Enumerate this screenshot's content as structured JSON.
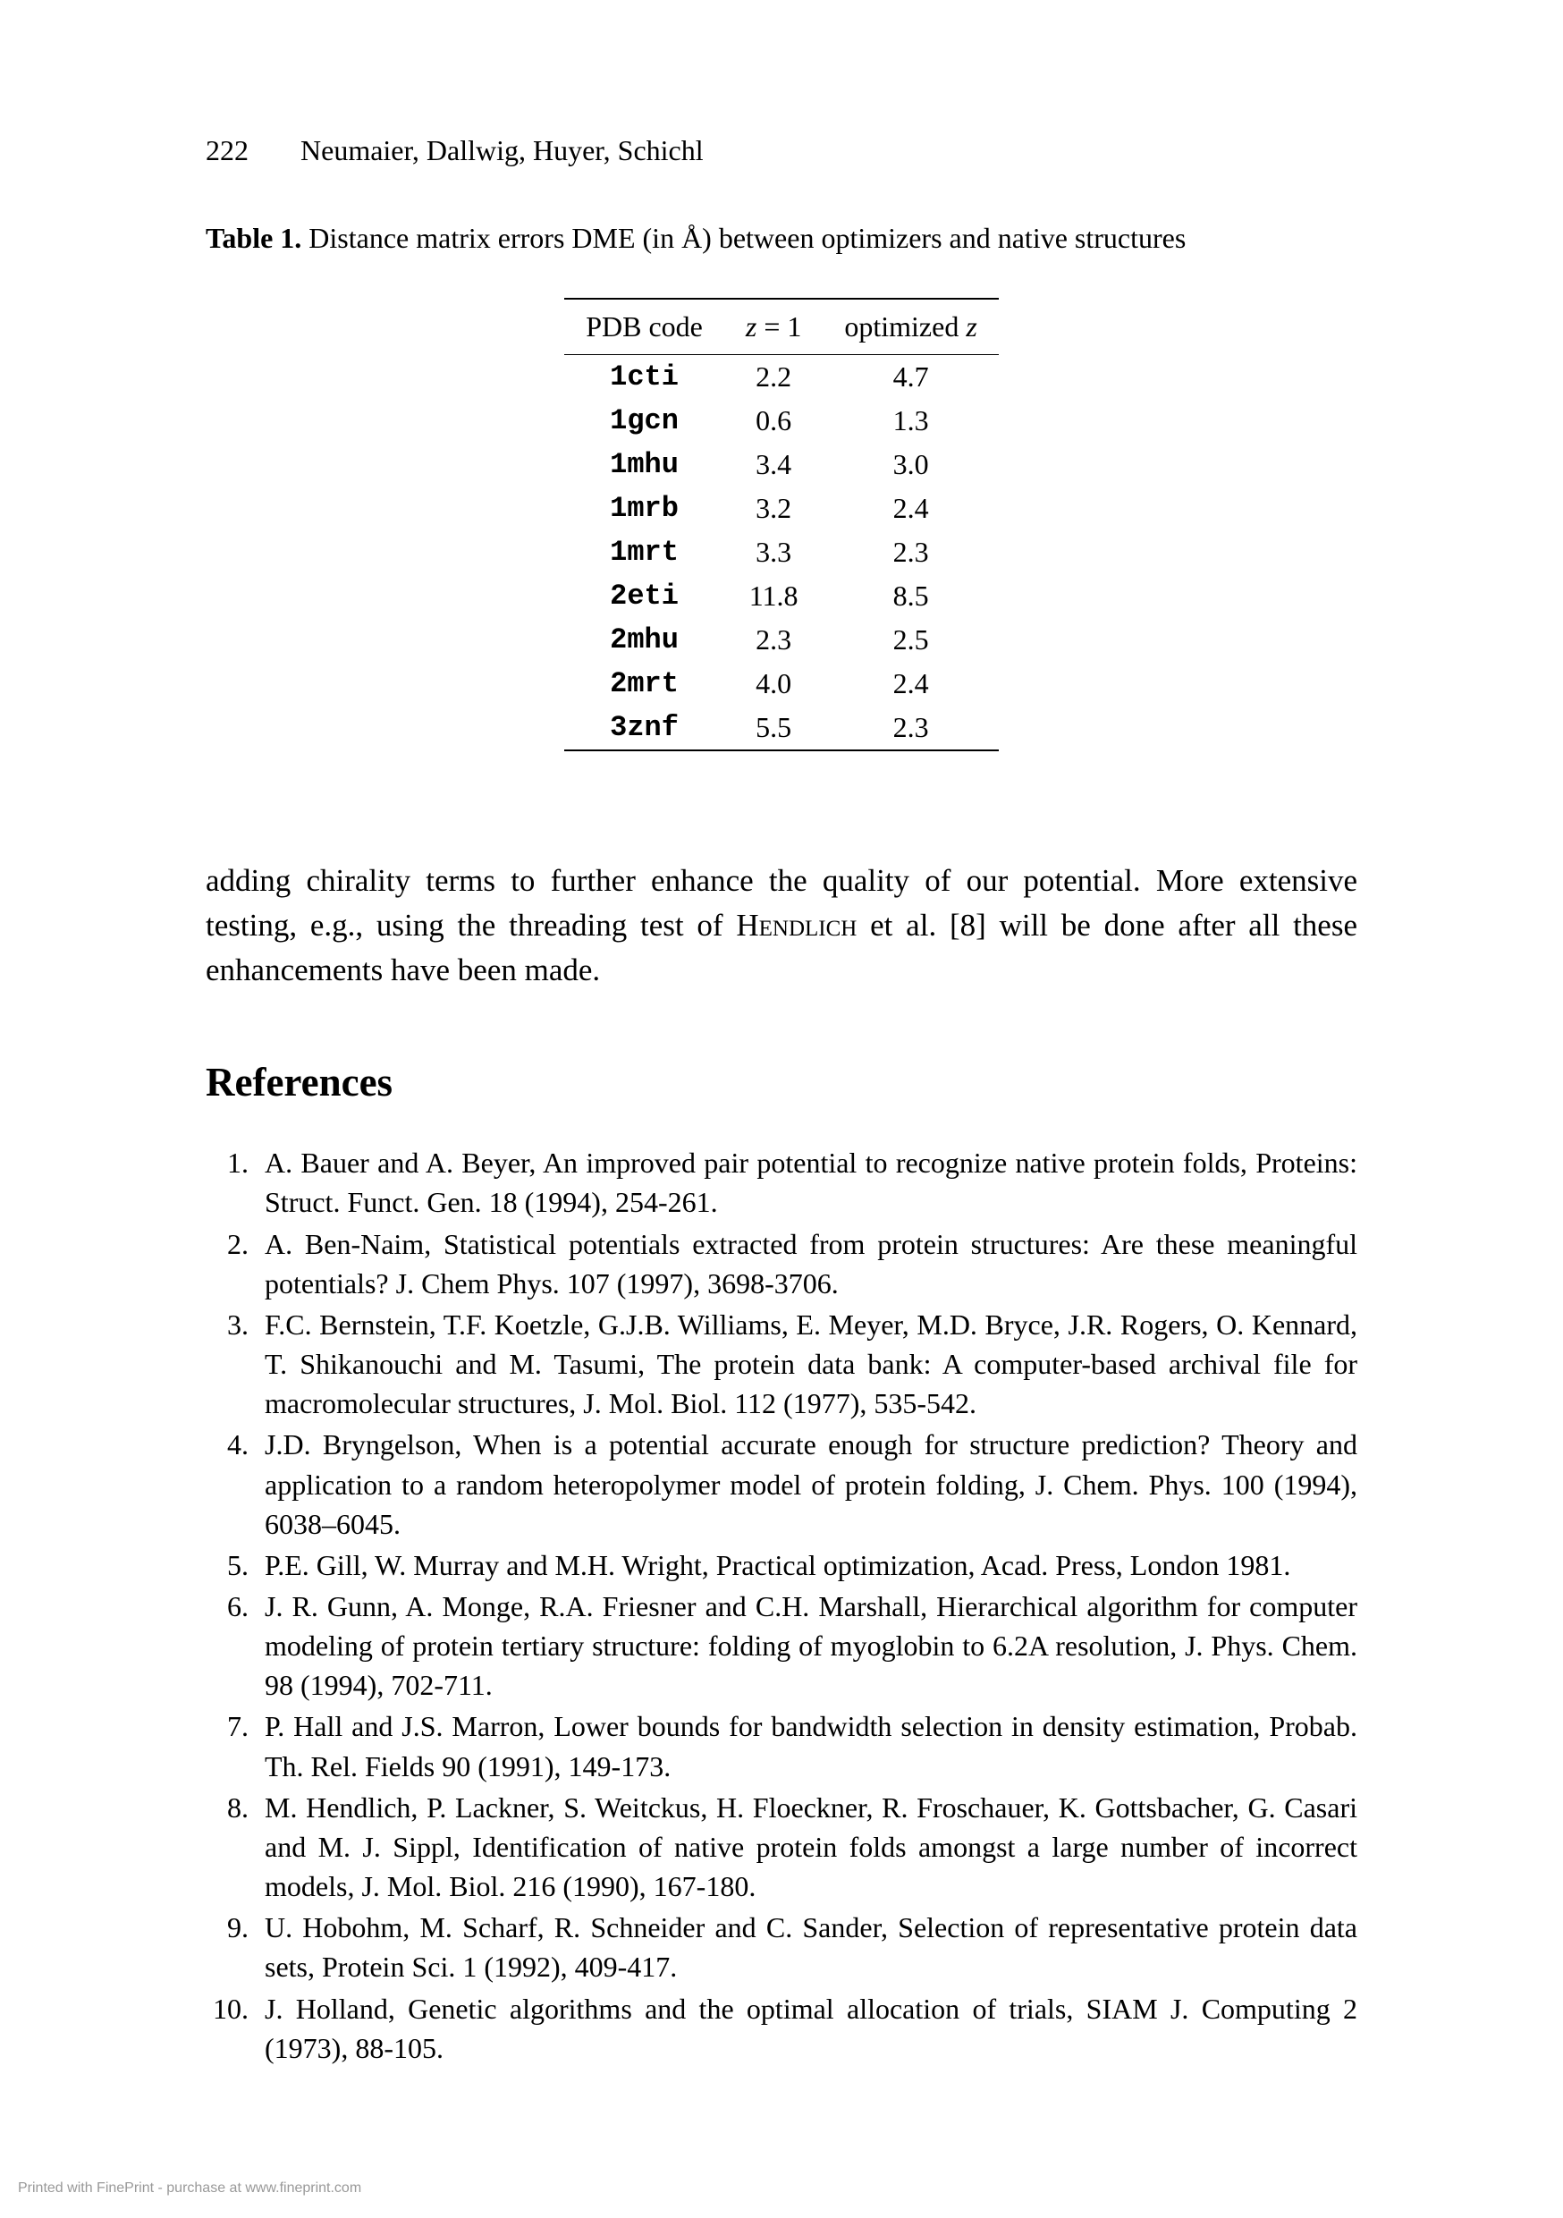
{
  "head": {
    "page_number": "222",
    "authors": "Neumaier, Dallwig, Huyer, Schichl"
  },
  "table": {
    "caption_label": "Table 1.",
    "caption_text": " Distance matrix errors DME (in Å) between optimizers and native structures",
    "columns": {
      "c1": "PDB code",
      "c2_pre": "z",
      "c2_post": " = 1",
      "c3_pre": "optimized ",
      "c3_var": "z"
    },
    "rows": [
      {
        "code": "1cti",
        "z1": "2.2",
        "zopt": "4.7"
      },
      {
        "code": "1gcn",
        "z1": "0.6",
        "zopt": "1.3"
      },
      {
        "code": "1mhu",
        "z1": "3.4",
        "zopt": "3.0"
      },
      {
        "code": "1mrb",
        "z1": "3.2",
        "zopt": "2.4"
      },
      {
        "code": "1mrt",
        "z1": "3.3",
        "zopt": "2.3"
      },
      {
        "code": "2eti",
        "z1": "11.8",
        "zopt": "8.5"
      },
      {
        "code": "2mhu",
        "z1": "2.3",
        "zopt": "2.5"
      },
      {
        "code": "2mrt",
        "z1": "4.0",
        "zopt": "2.4"
      },
      {
        "code": "3znf",
        "z1": "5.5",
        "zopt": "2.3"
      }
    ]
  },
  "paragraph": {
    "part1": "adding chirality terms to further enhance the quality of our potential. More extensive testing, e.g., using the threading test of ",
    "sc": "Hendlich",
    "part2": " et al. [8] will be done after all these enhancements have been made."
  },
  "refs": {
    "heading": "References",
    "items": [
      "A. Bauer and A. Beyer, An improved pair potential to recognize native protein folds, Proteins: Struct. Funct. Gen. 18 (1994), 254-261.",
      "A. Ben-Naim, Statistical potentials extracted from protein structures: Are these meaningful potentials? J. Chem Phys. 107 (1997), 3698-3706.",
      "F.C. Bernstein, T.F. Koetzle, G.J.B. Williams, E. Meyer, M.D. Bryce, J.R. Rogers, O. Kennard, T. Shikanouchi and M. Tasumi, The protein data bank: A computer-based archival file for macromolecular structures, J. Mol. Biol. 112 (1977), 535-542.",
      "J.D. Bryngelson, When is a potential accurate enough for structure prediction? Theory and application to a random heteropolymer model of protein folding, J. Chem. Phys. 100 (1994), 6038–6045.",
      "P.E. Gill, W. Murray and M.H. Wright, Practical optimization, Acad. Press, London 1981.",
      "J. R. Gunn, A. Monge, R.A. Friesner and C.H. Marshall, Hierarchical algorithm for computer modeling of protein tertiary structure: folding of myoglobin to 6.2A resolution, J. Phys. Chem. 98 (1994), 702-711.",
      "P. Hall and J.S. Marron, Lower bounds for bandwidth selection in density estimation, Probab. Th. Rel. Fields 90 (1991), 149-173.",
      "M. Hendlich, P. Lackner, S. Weitckus, H. Floeckner, R. Froschauer, K. Gottsbacher, G. Casari and M. J. Sippl, Identification of native protein folds amongst a large number of incorrect models, J. Mol. Biol. 216 (1990), 167-180.",
      "U. Hobohm, M. Scharf, R. Schneider and C. Sander, Selection of representative protein data sets, Protein Sci. 1 (1992), 409-417.",
      "J. Holland, Genetic algorithms and the optimal allocation of trials, SIAM J. Computing 2 (1973), 88-105."
    ]
  },
  "footer": "Printed with FinePrint - purchase at www.fineprint.com"
}
